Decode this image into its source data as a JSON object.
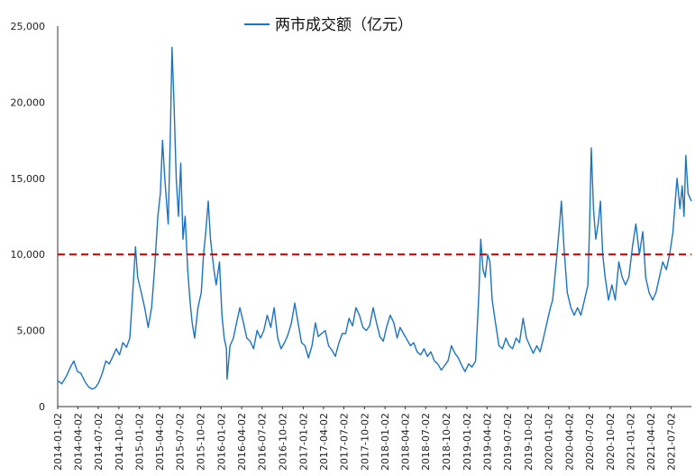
{
  "chart_data": {
    "type": "line",
    "title": "",
    "xlabel": "",
    "ylabel": "",
    "legend": {
      "position": "top-center"
    },
    "grid": false,
    "ylim": [
      0,
      25000
    ],
    "yticks": [
      {
        "value": 0,
        "label": "0"
      },
      {
        "value": 5000,
        "label": "5,000"
      },
      {
        "value": 10000,
        "label": "10,000"
      },
      {
        "value": 15000,
        "label": "15,000"
      },
      {
        "value": 20000,
        "label": "20,000"
      },
      {
        "value": 25000,
        "label": "25,000"
      }
    ],
    "xticks": [
      "2014-01-02",
      "2014-04-02",
      "2014-07-02",
      "2014-10-02",
      "2015-01-02",
      "2015-04-02",
      "2015-07-02",
      "2015-10-02",
      "2016-01-02",
      "2016-04-02",
      "2016-07-02",
      "2016-10-02",
      "2017-01-02",
      "2017-04-02",
      "2017-07-02",
      "2017-10-02",
      "2018-01-02",
      "2018-04-02",
      "2018-07-02",
      "2018-10-02",
      "2019-01-02",
      "2019-04-02",
      "2019-07-02",
      "2019-10-02",
      "2020-01-02",
      "2020-04-02",
      "2020-07-02",
      "2020-10-02",
      "2021-01-02",
      "2021-04-02",
      "2021-07-02"
    ],
    "xlim": [
      "2014-01-02",
      "2021-09-30"
    ],
    "reference_line": {
      "value": 10000,
      "color": "#c00000",
      "style": "dashed"
    },
    "series": [
      {
        "name": "两市成交额（亿元）",
        "color": "#1a73c4",
        "points": [
          [
            "2014-01-02",
            1700
          ],
          [
            "2014-01-20",
            1500
          ],
          [
            "2014-02-10",
            2000
          ],
          [
            "2014-02-28",
            2600
          ],
          [
            "2014-03-15",
            3000
          ],
          [
            "2014-03-31",
            2300
          ],
          [
            "2014-04-15",
            2200
          ],
          [
            "2014-05-05",
            1600
          ],
          [
            "2014-05-20",
            1300
          ],
          [
            "2014-06-05",
            1150
          ],
          [
            "2014-06-20",
            1250
          ],
          [
            "2014-07-05",
            1600
          ],
          [
            "2014-07-20",
            2200
          ],
          [
            "2014-08-05",
            3000
          ],
          [
            "2014-08-20",
            2800
          ],
          [
            "2014-09-05",
            3300
          ],
          [
            "2014-09-20",
            3800
          ],
          [
            "2014-10-05",
            3400
          ],
          [
            "2014-10-20",
            4200
          ],
          [
            "2014-11-05",
            3900
          ],
          [
            "2014-11-20",
            4500
          ],
          [
            "2014-12-05",
            8000
          ],
          [
            "2014-12-15",
            10500
          ],
          [
            "2014-12-25",
            8500
          ],
          [
            "2015-01-10",
            7500
          ],
          [
            "2015-01-25",
            6500
          ],
          [
            "2015-02-10",
            5200
          ],
          [
            "2015-02-25",
            6500
          ],
          [
            "2015-03-10",
            9000
          ],
          [
            "2015-03-25",
            12500
          ],
          [
            "2015-04-05",
            14000
          ],
          [
            "2015-04-15",
            17500
          ],
          [
            "2015-04-25",
            15000
          ],
          [
            "2015-05-10",
            12000
          ],
          [
            "2015-05-20",
            18000
          ],
          [
            "2015-05-27",
            23600
          ],
          [
            "2015-06-05",
            20000
          ],
          [
            "2015-06-15",
            15000
          ],
          [
            "2015-06-25",
            12500
          ],
          [
            "2015-07-05",
            16000
          ],
          [
            "2015-07-15",
            11000
          ],
          [
            "2015-07-25",
            12500
          ],
          [
            "2015-08-05",
            9000
          ],
          [
            "2015-08-15",
            7000
          ],
          [
            "2015-08-25",
            5500
          ],
          [
            "2015-09-05",
            4500
          ],
          [
            "2015-09-20",
            6500
          ],
          [
            "2015-10-05",
            7500
          ],
          [
            "2015-10-15",
            10000
          ],
          [
            "2015-10-25",
            11500
          ],
          [
            "2015-11-05",
            13500
          ],
          [
            "2015-11-15",
            11000
          ],
          [
            "2015-11-30",
            9000
          ],
          [
            "2015-12-10",
            8000
          ],
          [
            "2015-12-25",
            9500
          ],
          [
            "2016-01-05",
            6000
          ],
          [
            "2016-01-15",
            4500
          ],
          [
            "2016-01-25",
            3800
          ],
          [
            "2016-01-28",
            1800
          ],
          [
            "2016-02-10",
            4000
          ],
          [
            "2016-02-25",
            4500
          ],
          [
            "2016-03-10",
            5500
          ],
          [
            "2016-03-25",
            6500
          ],
          [
            "2016-04-10",
            5500
          ],
          [
            "2016-04-25",
            4500
          ],
          [
            "2016-05-10",
            4300
          ],
          [
            "2016-05-25",
            3800
          ],
          [
            "2016-06-10",
            5000
          ],
          [
            "2016-06-25",
            4500
          ],
          [
            "2016-07-10",
            5000
          ],
          [
            "2016-07-25",
            6000
          ],
          [
            "2016-08-10",
            5200
          ],
          [
            "2016-08-25",
            6500
          ],
          [
            "2016-09-10",
            4500
          ],
          [
            "2016-09-25",
            3800
          ],
          [
            "2016-10-10",
            4200
          ],
          [
            "2016-10-25",
            4700
          ],
          [
            "2016-11-10",
            5500
          ],
          [
            "2016-11-25",
            6800
          ],
          [
            "2016-12-10",
            5500
          ],
          [
            "2016-12-25",
            4200
          ],
          [
            "2017-01-10",
            4000
          ],
          [
            "2017-01-25",
            3200
          ],
          [
            "2017-02-10",
            4000
          ],
          [
            "2017-02-25",
            5500
          ],
          [
            "2017-03-10",
            4600
          ],
          [
            "2017-03-25",
            4800
          ],
          [
            "2017-04-10",
            5000
          ],
          [
            "2017-04-25",
            4000
          ],
          [
            "2017-05-10",
            3700
          ],
          [
            "2017-05-25",
            3300
          ],
          [
            "2017-06-10",
            4200
          ],
          [
            "2017-06-25",
            4800
          ],
          [
            "2017-07-10",
            4800
          ],
          [
            "2017-07-25",
            5800
          ],
          [
            "2017-08-10",
            5300
          ],
          [
            "2017-08-25",
            6500
          ],
          [
            "2017-09-10",
            6000
          ],
          [
            "2017-09-25",
            5200
          ],
          [
            "2017-10-10",
            5000
          ],
          [
            "2017-10-25",
            5300
          ],
          [
            "2017-11-10",
            6500
          ],
          [
            "2017-11-25",
            5500
          ],
          [
            "2017-12-10",
            4600
          ],
          [
            "2017-12-25",
            4300
          ],
          [
            "2018-01-10",
            5300
          ],
          [
            "2018-01-25",
            6000
          ],
          [
            "2018-02-10",
            5500
          ],
          [
            "2018-02-25",
            4500
          ],
          [
            "2018-03-10",
            5200
          ],
          [
            "2018-03-25",
            4800
          ],
          [
            "2018-04-10",
            4400
          ],
          [
            "2018-04-25",
            4000
          ],
          [
            "2018-05-10",
            4200
          ],
          [
            "2018-05-25",
            3600
          ],
          [
            "2018-06-10",
            3400
          ],
          [
            "2018-06-25",
            3800
          ],
          [
            "2018-07-10",
            3300
          ],
          [
            "2018-07-25",
            3600
          ],
          [
            "2018-08-10",
            3000
          ],
          [
            "2018-08-25",
            2800
          ],
          [
            "2018-09-10",
            2400
          ],
          [
            "2018-09-25",
            2700
          ],
          [
            "2018-10-10",
            3000
          ],
          [
            "2018-10-25",
            4000
          ],
          [
            "2018-11-10",
            3500
          ],
          [
            "2018-11-25",
            3200
          ],
          [
            "2018-12-10",
            2700
          ],
          [
            "2018-12-25",
            2300
          ],
          [
            "2019-01-10",
            2800
          ],
          [
            "2019-01-25",
            2600
          ],
          [
            "2019-02-10",
            3000
          ],
          [
            "2019-02-25",
            7500
          ],
          [
            "2019-03-05",
            11000
          ],
          [
            "2019-03-15",
            9000
          ],
          [
            "2019-03-25",
            8500
          ],
          [
            "2019-04-05",
            10000
          ],
          [
            "2019-04-15",
            9500
          ],
          [
            "2019-04-25",
            7000
          ],
          [
            "2019-05-10",
            5500
          ],
          [
            "2019-05-25",
            4000
          ],
          [
            "2019-06-10",
            3800
          ],
          [
            "2019-06-25",
            4500
          ],
          [
            "2019-07-10",
            4000
          ],
          [
            "2019-07-25",
            3800
          ],
          [
            "2019-08-10",
            4500
          ],
          [
            "2019-08-25",
            4200
          ],
          [
            "2019-09-10",
            5800
          ],
          [
            "2019-09-25",
            4500
          ],
          [
            "2019-10-10",
            4000
          ],
          [
            "2019-10-25",
            3500
          ],
          [
            "2019-11-10",
            4000
          ],
          [
            "2019-11-25",
            3600
          ],
          [
            "2019-12-10",
            4500
          ],
          [
            "2019-12-25",
            5500
          ],
          [
            "2020-01-10",
            6500
          ],
          [
            "2020-01-20",
            7000
          ],
          [
            "2020-02-05",
            9500
          ],
          [
            "2020-02-20",
            12000
          ],
          [
            "2020-02-28",
            13500
          ],
          [
            "2020-03-10",
            10500
          ],
          [
            "2020-03-25",
            7500
          ],
          [
            "2020-04-10",
            6500
          ],
          [
            "2020-04-25",
            6000
          ],
          [
            "2020-05-10",
            6500
          ],
          [
            "2020-05-25",
            6000
          ],
          [
            "2020-06-10",
            7000
          ],
          [
            "2020-06-25",
            8000
          ],
          [
            "2020-07-03",
            12000
          ],
          [
            "2020-07-10",
            17000
          ],
          [
            "2020-07-20",
            13000
          ],
          [
            "2020-07-30",
            11000
          ],
          [
            "2020-08-10",
            12000
          ],
          [
            "2020-08-20",
            13500
          ],
          [
            "2020-08-30",
            10000
          ],
          [
            "2020-09-10",
            8500
          ],
          [
            "2020-09-25",
            7000
          ],
          [
            "2020-10-10",
            8000
          ],
          [
            "2020-10-25",
            7000
          ],
          [
            "2020-11-10",
            9500
          ],
          [
            "2020-11-25",
            8500
          ],
          [
            "2020-12-10",
            8000
          ],
          [
            "2020-12-25",
            8500
          ],
          [
            "2021-01-10",
            10500
          ],
          [
            "2021-01-25",
            12000
          ],
          [
            "2021-02-10",
            10000
          ],
          [
            "2021-02-25",
            11500
          ],
          [
            "2021-03-10",
            8500
          ],
          [
            "2021-03-25",
            7500
          ],
          [
            "2021-04-10",
            7000
          ],
          [
            "2021-04-25",
            7500
          ],
          [
            "2021-05-10",
            8500
          ],
          [
            "2021-05-25",
            9500
          ],
          [
            "2021-06-10",
            9000
          ],
          [
            "2021-06-25",
            10000
          ],
          [
            "2021-07-10",
            11500
          ],
          [
            "2021-07-20",
            13500
          ],
          [
            "2021-07-28",
            15000
          ],
          [
            "2021-08-10",
            13000
          ],
          [
            "2021-08-20",
            14500
          ],
          [
            "2021-08-28",
            12500
          ],
          [
            "2021-09-05",
            16500
          ],
          [
            "2021-09-15",
            14000
          ],
          [
            "2021-09-30",
            13500
          ]
        ]
      }
    ]
  }
}
